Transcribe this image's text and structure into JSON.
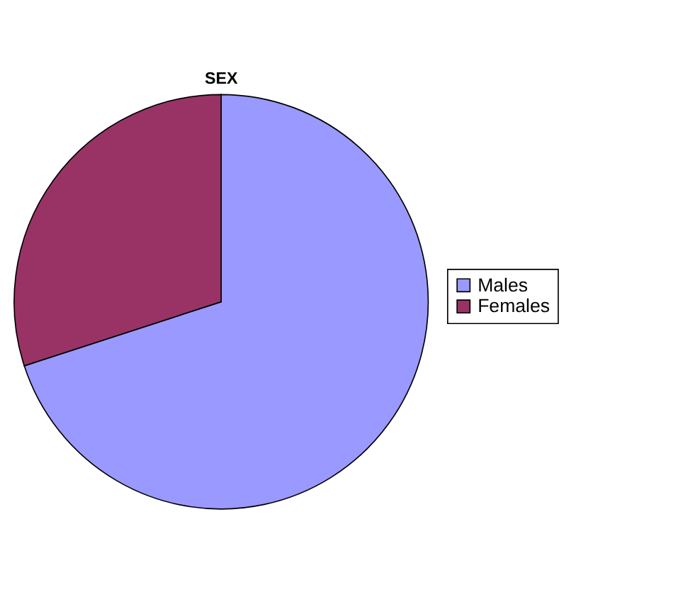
{
  "chart_data": {
    "type": "pie",
    "title": "SEX",
    "categories": [
      "Males",
      "Females"
    ],
    "values": [
      70,
      30
    ],
    "colors": [
      "#9999ff",
      "#993366"
    ],
    "legend": "right"
  }
}
